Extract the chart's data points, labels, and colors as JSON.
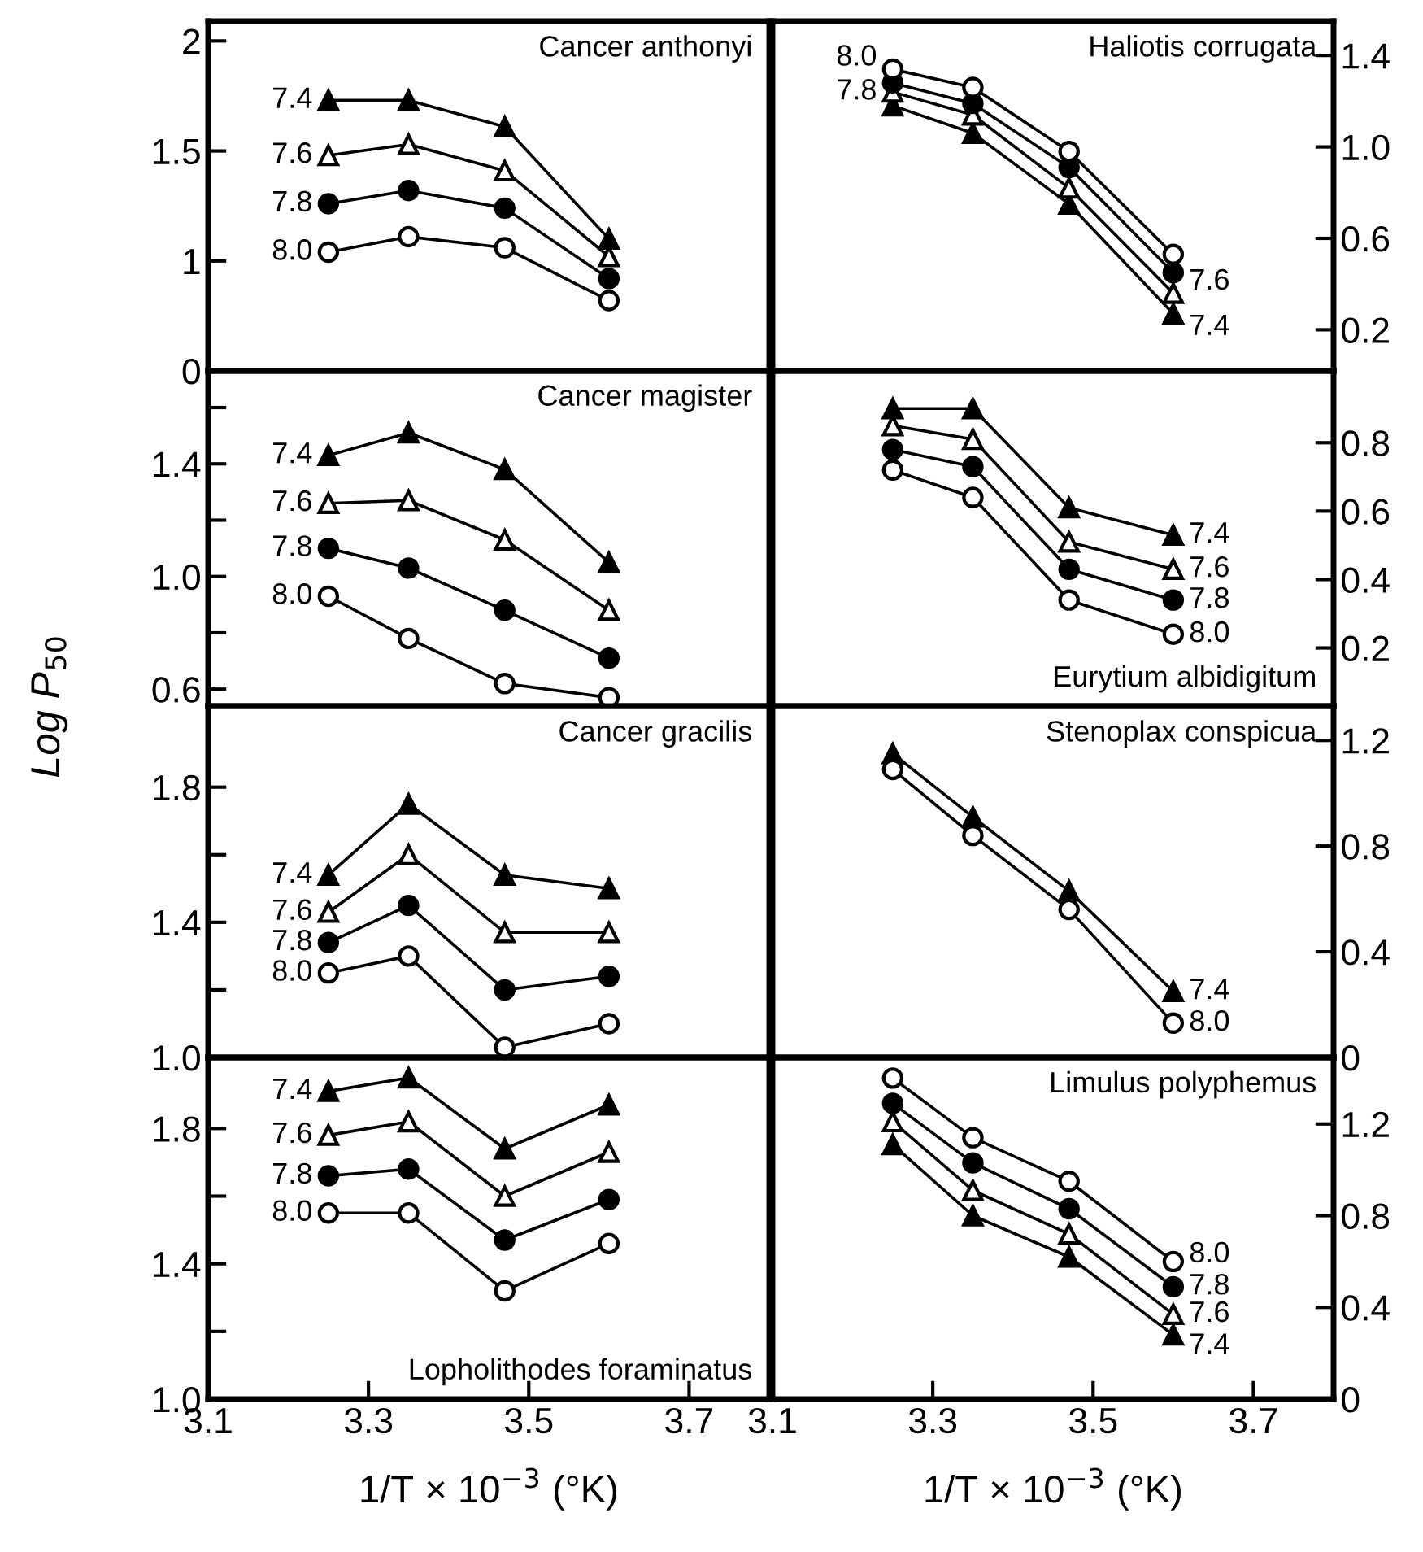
{
  "chart_data": [
    {
      "type": "line",
      "title": "Cancer anthonyi",
      "x": [
        3.25,
        3.35,
        3.47,
        3.6
      ],
      "xlim": [
        3.1,
        3.8
      ],
      "xticks": [
        3.1,
        3.3,
        3.5,
        3.7
      ],
      "ylim": [
        0.5,
        2.09
      ],
      "yticks": [
        {
          "value": 0.5,
          "label": "0"
        },
        1,
        1.5,
        2
      ],
      "tick_labels": "y",
      "line_style": "solid",
      "annotations": [
        "7.4",
        "7.6",
        "7.8",
        "8.0"
      ],
      "series": [
        {
          "color": "#000000",
          "marker": "triangle",
          "values": [
            1.73,
            1.73,
            1.61,
            1.1
          ]
        },
        {
          "color": "#000000",
          "marker": "triangle",
          "values": [
            1.48,
            1.53,
            1.41,
            1.02
          ]
        },
        {
          "color": "#000000",
          "marker": "circle",
          "values": [
            1.26,
            1.32,
            1.24,
            0.92
          ]
        },
        {
          "color": "#000000",
          "marker": "circle",
          "values": [
            1.04,
            1.11,
            1.06,
            0.82
          ]
        }
      ]
    },
    {
      "type": "line",
      "title": "Haliotis corrugata",
      "x": [
        3.25,
        3.35,
        3.47,
        3.6
      ],
      "xlim": [
        3.1,
        3.8
      ],
      "xticks": [
        3.1,
        3.3,
        3.5,
        3.7
      ],
      "ylim": [
        0.02,
        1.55
      ],
      "yticks": [
        0.2,
        0.6,
        {
          "value": 1.0,
          "label": "1.0"
        },
        1.4
      ],
      "tick_labels": "y",
      "line_style": "solid",
      "annotations": [
        "7.4",
        "7.6",
        "7.8",
        "8.0"
      ],
      "series": [
        {
          "color": "#000000",
          "marker": "triangle",
          "values": [
            1.18,
            1.06,
            0.75,
            0.27
          ]
        },
        {
          "color": "#000000",
          "marker": "triangle",
          "values": [
            1.24,
            1.14,
            0.82,
            0.36
          ]
        },
        {
          "color": "#000000",
          "marker": "circle",
          "values": [
            1.28,
            1.19,
            0.91,
            0.45
          ]
        },
        {
          "color": "#000000",
          "marker": "circle",
          "values": [
            1.34,
            1.26,
            0.98,
            0.53
          ]
        }
      ]
    },
    {
      "type": "line",
      "title": "Cancer magister",
      "ylabel": "Log P$_{50}$",
      "x": [
        3.25,
        3.35,
        3.47,
        3.6
      ],
      "xlim": [
        3.1,
        3.8
      ],
      "xticks": [
        3.1,
        3.3,
        3.5,
        3.7
      ],
      "ylim": [
        0.54,
        1.73
      ],
      "yticks": [
        0.6,
        {
          "value": 0.8,
          "label": null
        },
        {
          "value": 1.0,
          "label": "1.0"
        },
        {
          "value": 1.2,
          "label": null
        },
        1.4,
        {
          "value": 1.6,
          "label": null
        }
      ],
      "tick_labels": "y",
      "line_style": "solid",
      "annotations": [
        "7.4",
        "7.6",
        "7.8",
        "8.0"
      ],
      "series": [
        {
          "color": "#000000",
          "marker": "triangle",
          "values": [
            1.43,
            1.51,
            1.38,
            1.05
          ]
        },
        {
          "color": "#000000",
          "marker": "triangle",
          "values": [
            1.26,
            1.27,
            1.13,
            0.88
          ]
        },
        {
          "color": "#000000",
          "marker": "circle",
          "values": [
            1.1,
            1.03,
            0.88,
            0.71
          ]
        },
        {
          "color": "#000000",
          "marker": "circle",
          "values": [
            0.93,
            0.78,
            0.62,
            0.57
          ]
        }
      ]
    },
    {
      "type": "line",
      "title": "Eurytium albidigitum",
      "x": [
        3.25,
        3.35,
        3.47,
        3.6
      ],
      "xlim": [
        3.1,
        3.8
      ],
      "xticks": [
        3.1,
        3.3,
        3.5,
        3.7
      ],
      "ylim": [
        0.03,
        1.01
      ],
      "yticks": [
        0.2,
        0.4,
        0.6,
        0.8
      ],
      "tick_labels": "y",
      "line_style": "solid",
      "annotations": [
        "7.4",
        "7.6",
        "7.8",
        "8.0"
      ],
      "series": [
        {
          "color": "#000000",
          "marker": "triangle",
          "values": [
            0.9,
            0.9,
            0.61,
            0.53
          ]
        },
        {
          "color": "#000000",
          "marker": "triangle",
          "values": [
            0.85,
            0.81,
            0.51,
            0.43
          ]
        },
        {
          "color": "#000000",
          "marker": "circle",
          "values": [
            0.78,
            0.73,
            0.43,
            0.34
          ]
        },
        {
          "color": "#000000",
          "marker": "circle",
          "values": [
            0.72,
            0.64,
            0.34,
            0.24
          ]
        }
      ]
    },
    {
      "type": "line",
      "title": "Cancer gracilis",
      "x": [
        3.25,
        3.35,
        3.47,
        3.6
      ],
      "xlim": [
        3.1,
        3.8
      ],
      "xticks": [
        3.1,
        3.3,
        3.5,
        3.7
      ],
      "ylim": [
        1.0,
        2.04
      ],
      "yticks": [
        {
          "value": 1.0,
          "label": "1.0"
        },
        {
          "value": 1.2,
          "label": null
        },
        1.4,
        {
          "value": 1.6,
          "label": null
        },
        1.8
      ],
      "tick_labels": "y",
      "line_style": "solid",
      "annotations": [
        "7.4",
        "7.6",
        "7.8",
        "8.0"
      ],
      "series": [
        {
          "color": "#000000",
          "marker": "triangle",
          "values": [
            1.54,
            1.75,
            1.54,
            1.5
          ]
        },
        {
          "color": "#000000",
          "marker": "triangle",
          "values": [
            1.43,
            1.6,
            1.37,
            1.37
          ]
        },
        {
          "color": "#000000",
          "marker": "circle",
          "values": [
            1.34,
            1.45,
            1.2,
            1.24
          ]
        },
        {
          "color": "#000000",
          "marker": "circle",
          "values": [
            1.25,
            1.3,
            1.03,
            1.1
          ]
        }
      ]
    },
    {
      "type": "line",
      "title": "Stenoplax conspicua",
      "x": [
        3.25,
        3.35,
        3.47,
        3.6
      ],
      "xlim": [
        3.1,
        3.8
      ],
      "xticks": [
        3.1,
        3.3,
        3.5,
        3.7
      ],
      "ylim": [
        0,
        1.33
      ],
      "yticks": [
        0,
        0.4,
        0.8,
        1.2
      ],
      "tick_labels": "y",
      "line_style": "solid",
      "annotations": [
        "7.4",
        "8.0"
      ],
      "series": [
        {
          "color": "#000000",
          "marker": "triangle",
          "values": [
            1.15,
            0.91,
            0.63,
            0.25
          ]
        },
        {
          "color": "#000000",
          "marker": "circle",
          "values": [
            1.09,
            0.84,
            0.56,
            0.13
          ]
        }
      ]
    },
    {
      "type": "line",
      "title": "Lopholithodes foraminatus",
      "xlabel": "1/T × 10$^{−3}$ (°K)",
      "x": [
        3.25,
        3.35,
        3.47,
        3.6
      ],
      "xlim": [
        3.1,
        3.8
      ],
      "xticks": [
        3.1,
        3.3,
        3.5,
        3.7
      ],
      "ylim": [
        1.0,
        2.01
      ],
      "yticks": [
        {
          "value": 1.0,
          "label": "1.0"
        },
        {
          "value": 1.2,
          "label": null
        },
        1.4,
        {
          "value": 1.6,
          "label": null
        },
        1.8
      ],
      "line_style": "solid",
      "annotations": [
        "7.4",
        "7.6",
        "7.8",
        "8.0"
      ],
      "series": [
        {
          "color": "#000000",
          "marker": "triangle",
          "values": [
            1.91,
            1.95,
            1.74,
            1.87
          ]
        },
        {
          "color": "#000000",
          "marker": "triangle",
          "values": [
            1.78,
            1.82,
            1.6,
            1.73
          ]
        },
        {
          "color": "#000000",
          "marker": "circle",
          "values": [
            1.66,
            1.68,
            1.47,
            1.59
          ]
        },
        {
          "color": "#000000",
          "marker": "circle",
          "values": [
            1.55,
            1.55,
            1.32,
            1.46
          ]
        }
      ]
    },
    {
      "type": "line",
      "title": "Limulus polyphemus",
      "xlabel": "1/T × 10$^{−3}$ (°K)",
      "x": [
        3.25,
        3.35,
        3.47,
        3.6
      ],
      "xlim": [
        3.1,
        3.8
      ],
      "xticks": [
        3.1,
        3.3,
        3.5,
        3.7
      ],
      "ylim": [
        0,
        1.49
      ],
      "yticks": [
        0,
        0.4,
        0.8,
        1.2
      ],
      "line_style": "solid",
      "annotations": [
        "7.4",
        "7.6",
        "7.8",
        "8.0"
      ],
      "series": [
        {
          "color": "#000000",
          "marker": "triangle",
          "values": [
            1.11,
            0.8,
            0.62,
            0.28
          ]
        },
        {
          "color": "#000000",
          "marker": "triangle",
          "values": [
            1.21,
            0.91,
            0.72,
            0.37
          ]
        },
        {
          "color": "#000000",
          "marker": "circle",
          "values": [
            1.29,
            1.03,
            0.83,
            0.49
          ]
        },
        {
          "color": "#000000",
          "marker": "circle",
          "values": [
            1.4,
            1.14,
            0.95,
            0.6
          ]
        }
      ]
    }
  ]
}
